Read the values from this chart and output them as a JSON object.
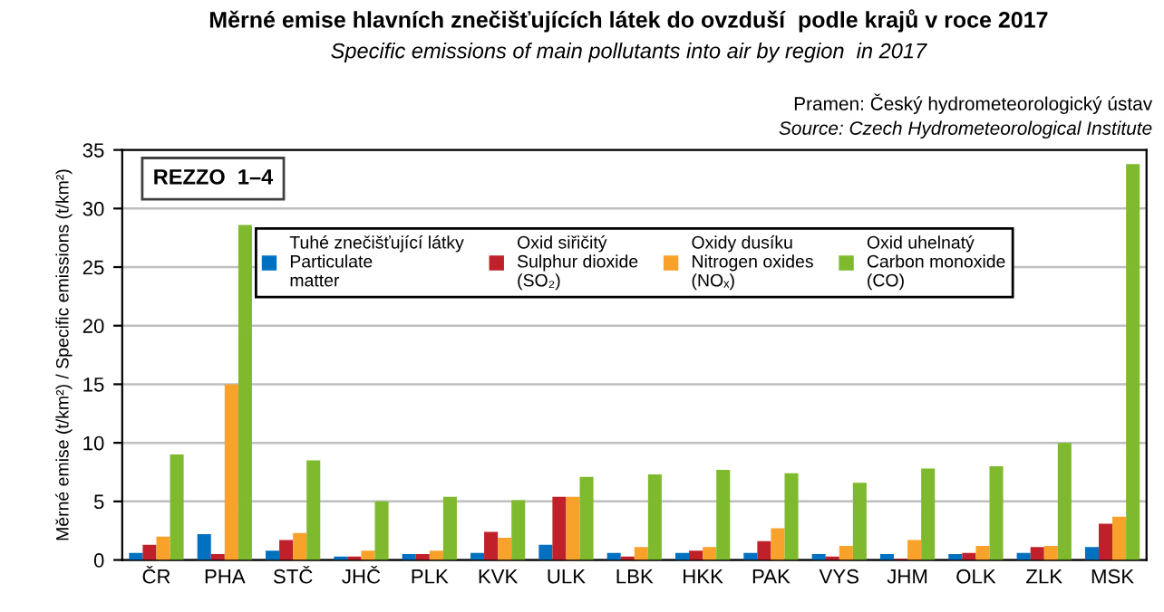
{
  "chart_data": {
    "type": "bar",
    "title": "Měrné emise hlavních znečišťujících látek do ovzduší  podle krajů v roce 2017",
    "subtitle": "Specific emissions of main pollutants into air by region  in 2017",
    "ylabel": "Měrné emise (t/km²) / Specific emissions (t/km²)",
    "annotations": [
      "Pramen: Český hydrometeorologický ústav",
      "Source: Czech Hydrometeorological Institute",
      "REZZO  1–4"
    ],
    "categories": [
      "ČR",
      "PHA",
      "STČ",
      "JHČ",
      "PLK",
      "KVK",
      "ULK",
      "LBK",
      "HKK",
      "PAK",
      "VYS",
      "JHM",
      "OLK",
      "ZLK",
      "MSK"
    ],
    "series": [
      {
        "name": "Tuhé znečišťující látky\nParticulate\nmatter",
        "color": "#0070c0",
        "values": [
          0.6,
          2.2,
          0.8,
          0.3,
          0.5,
          0.6,
          1.3,
          0.6,
          0.6,
          0.6,
          0.5,
          0.5,
          0.5,
          0.6,
          1.1
        ]
      },
      {
        "name": "Oxid siřičitý\nSulphur dioxide\n(SO₂)",
        "color": "#c0202a",
        "values": [
          1.3,
          0.5,
          1.7,
          0.3,
          0.5,
          2.4,
          5.4,
          0.3,
          0.8,
          1.6,
          0.3,
          0.1,
          0.6,
          1.1,
          3.1
        ]
      },
      {
        "name": "Oxidy dusíku\nNitrogen oxides\n(NOₓ)",
        "color": "#f8a12b",
        "values": [
          2.0,
          15.0,
          2.3,
          0.8,
          0.8,
          1.9,
          5.4,
          1.1,
          1.1,
          2.7,
          1.2,
          1.7,
          1.2,
          1.2,
          3.7
        ]
      },
      {
        "name": "Oxid uhelnatý\nCarbon monoxide\n(CO)",
        "color": "#7fba2e",
        "values": [
          9.0,
          28.6,
          8.5,
          5.0,
          5.4,
          5.1,
          7.1,
          7.3,
          7.7,
          7.4,
          6.6,
          7.8,
          8.0,
          10.0,
          33.8
        ]
      }
    ],
    "ylim": [
      0,
      35
    ],
    "yticks": [
      0,
      5,
      10,
      15,
      20,
      25,
      30,
      35
    ],
    "grid": "y",
    "legend": "top"
  }
}
